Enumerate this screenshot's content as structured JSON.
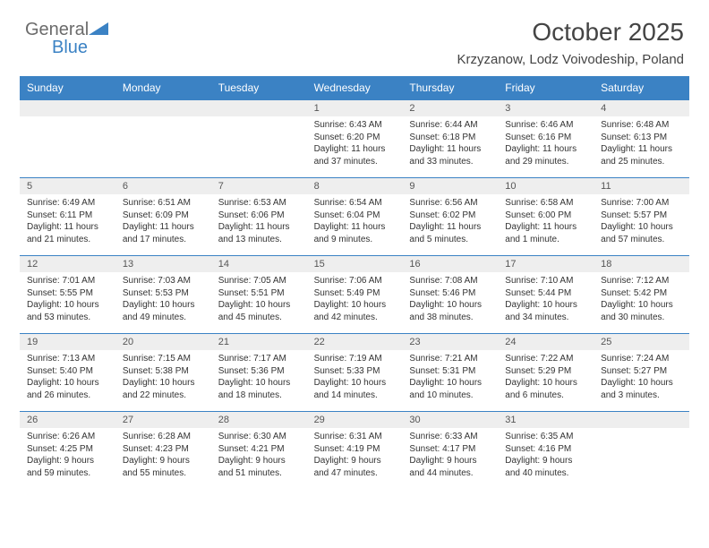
{
  "logo": {
    "text_general": "General",
    "text_blue": "Blue"
  },
  "title": "October 2025",
  "subtitle": "Krzyzanow, Lodz Voivodeship, Poland",
  "colors": {
    "header_bg": "#3b82c4",
    "header_text": "#ffffff",
    "daynum_bg": "#eeeeee",
    "cell_bg": "#ffffff",
    "text": "#333333",
    "logo_gray": "#6b6b6b",
    "logo_blue": "#3b82c4",
    "border": "#3b82c4"
  },
  "day_headers": [
    "Sunday",
    "Monday",
    "Tuesday",
    "Wednesday",
    "Thursday",
    "Friday",
    "Saturday"
  ],
  "weeks": [
    [
      null,
      null,
      null,
      {
        "n": "1",
        "sunrise": "6:43 AM",
        "sunset": "6:20 PM",
        "daylight": "11 hours and 37 minutes."
      },
      {
        "n": "2",
        "sunrise": "6:44 AM",
        "sunset": "6:18 PM",
        "daylight": "11 hours and 33 minutes."
      },
      {
        "n": "3",
        "sunrise": "6:46 AM",
        "sunset": "6:16 PM",
        "daylight": "11 hours and 29 minutes."
      },
      {
        "n": "4",
        "sunrise": "6:48 AM",
        "sunset": "6:13 PM",
        "daylight": "11 hours and 25 minutes."
      }
    ],
    [
      {
        "n": "5",
        "sunrise": "6:49 AM",
        "sunset": "6:11 PM",
        "daylight": "11 hours and 21 minutes."
      },
      {
        "n": "6",
        "sunrise": "6:51 AM",
        "sunset": "6:09 PM",
        "daylight": "11 hours and 17 minutes."
      },
      {
        "n": "7",
        "sunrise": "6:53 AM",
        "sunset": "6:06 PM",
        "daylight": "11 hours and 13 minutes."
      },
      {
        "n": "8",
        "sunrise": "6:54 AM",
        "sunset": "6:04 PM",
        "daylight": "11 hours and 9 minutes."
      },
      {
        "n": "9",
        "sunrise": "6:56 AM",
        "sunset": "6:02 PM",
        "daylight": "11 hours and 5 minutes."
      },
      {
        "n": "10",
        "sunrise": "6:58 AM",
        "sunset": "6:00 PM",
        "daylight": "11 hours and 1 minute."
      },
      {
        "n": "11",
        "sunrise": "7:00 AM",
        "sunset": "5:57 PM",
        "daylight": "10 hours and 57 minutes."
      }
    ],
    [
      {
        "n": "12",
        "sunrise": "7:01 AM",
        "sunset": "5:55 PM",
        "daylight": "10 hours and 53 minutes."
      },
      {
        "n": "13",
        "sunrise": "7:03 AM",
        "sunset": "5:53 PM",
        "daylight": "10 hours and 49 minutes."
      },
      {
        "n": "14",
        "sunrise": "7:05 AM",
        "sunset": "5:51 PM",
        "daylight": "10 hours and 45 minutes."
      },
      {
        "n": "15",
        "sunrise": "7:06 AM",
        "sunset": "5:49 PM",
        "daylight": "10 hours and 42 minutes."
      },
      {
        "n": "16",
        "sunrise": "7:08 AM",
        "sunset": "5:46 PM",
        "daylight": "10 hours and 38 minutes."
      },
      {
        "n": "17",
        "sunrise": "7:10 AM",
        "sunset": "5:44 PM",
        "daylight": "10 hours and 34 minutes."
      },
      {
        "n": "18",
        "sunrise": "7:12 AM",
        "sunset": "5:42 PM",
        "daylight": "10 hours and 30 minutes."
      }
    ],
    [
      {
        "n": "19",
        "sunrise": "7:13 AM",
        "sunset": "5:40 PM",
        "daylight": "10 hours and 26 minutes."
      },
      {
        "n": "20",
        "sunrise": "7:15 AM",
        "sunset": "5:38 PM",
        "daylight": "10 hours and 22 minutes."
      },
      {
        "n": "21",
        "sunrise": "7:17 AM",
        "sunset": "5:36 PM",
        "daylight": "10 hours and 18 minutes."
      },
      {
        "n": "22",
        "sunrise": "7:19 AM",
        "sunset": "5:33 PM",
        "daylight": "10 hours and 14 minutes."
      },
      {
        "n": "23",
        "sunrise": "7:21 AM",
        "sunset": "5:31 PM",
        "daylight": "10 hours and 10 minutes."
      },
      {
        "n": "24",
        "sunrise": "7:22 AM",
        "sunset": "5:29 PM",
        "daylight": "10 hours and 6 minutes."
      },
      {
        "n": "25",
        "sunrise": "7:24 AM",
        "sunset": "5:27 PM",
        "daylight": "10 hours and 3 minutes."
      }
    ],
    [
      {
        "n": "26",
        "sunrise": "6:26 AM",
        "sunset": "4:25 PM",
        "daylight": "9 hours and 59 minutes."
      },
      {
        "n": "27",
        "sunrise": "6:28 AM",
        "sunset": "4:23 PM",
        "daylight": "9 hours and 55 minutes."
      },
      {
        "n": "28",
        "sunrise": "6:30 AM",
        "sunset": "4:21 PM",
        "daylight": "9 hours and 51 minutes."
      },
      {
        "n": "29",
        "sunrise": "6:31 AM",
        "sunset": "4:19 PM",
        "daylight": "9 hours and 47 minutes."
      },
      {
        "n": "30",
        "sunrise": "6:33 AM",
        "sunset": "4:17 PM",
        "daylight": "9 hours and 44 minutes."
      },
      {
        "n": "31",
        "sunrise": "6:35 AM",
        "sunset": "4:16 PM",
        "daylight": "9 hours and 40 minutes."
      },
      null
    ]
  ],
  "labels": {
    "sunrise": "Sunrise:",
    "sunset": "Sunset:",
    "daylight": "Daylight:"
  }
}
